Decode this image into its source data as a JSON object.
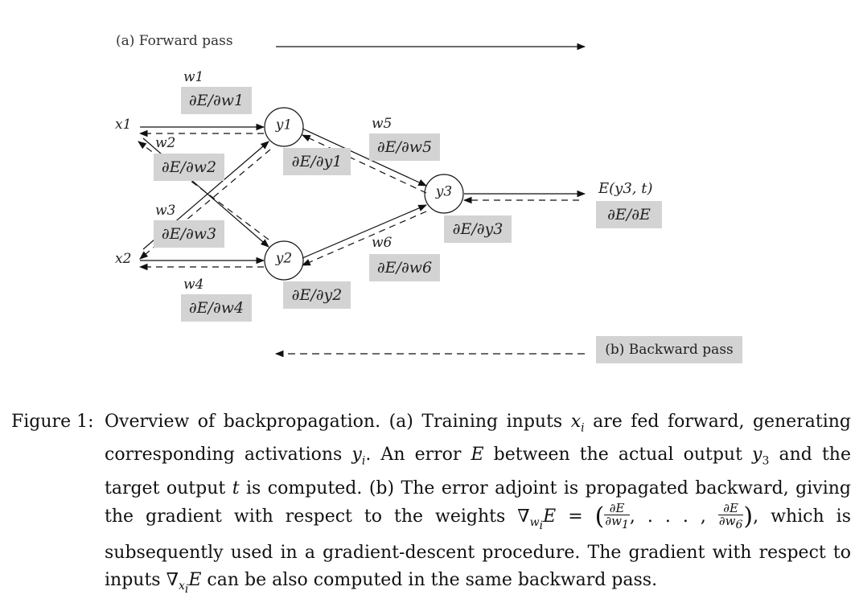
{
  "diagram": {
    "forward_pass_label": "(a) Forward pass",
    "backward_pass_label": "(b) Backward pass",
    "nodes": {
      "x1": "x1",
      "x2": "x2",
      "y1": "y1",
      "y2": "y2",
      "y3": "y3",
      "output": "E(y3, t)"
    },
    "weights": {
      "w1": "w1",
      "w2": "w2",
      "w3": "w3",
      "w4": "w4",
      "w5": "w5",
      "w6": "w6"
    },
    "gradients": {
      "dE_dw1": "∂E/∂w1",
      "dE_dw2": "∂E/∂w2",
      "dE_dw3": "∂E/∂w3",
      "dE_dw4": "∂E/∂w4",
      "dE_dw5": "∂E/∂w5",
      "dE_dw6": "∂E/∂w6",
      "dE_dy1": "∂E/∂y1",
      "dE_dy2": "∂E/∂y2",
      "dE_dy3": "∂E/∂y3",
      "dE_dE": "∂E/∂E"
    },
    "box_color": "#d3d3d3",
    "line_color": "#111111"
  },
  "caption": {
    "head": "Figure 1:",
    "part1": "Overview of backpropagation. (a) Training inputs ",
    "part2": " are fed forward, generating corresponding activations ",
    "part3": ". An error ",
    "part4": " between the actual output ",
    "part5": " and the target output ",
    "part6": " is computed. (b) The error adjoint is propagated backward, giving the gradient with respect to the weights ",
    "part7": ", which is subsequently used in a gradient-descent procedure. The gradient with respect to inputs ",
    "part8": " can be also computed in the same backward pass."
  }
}
